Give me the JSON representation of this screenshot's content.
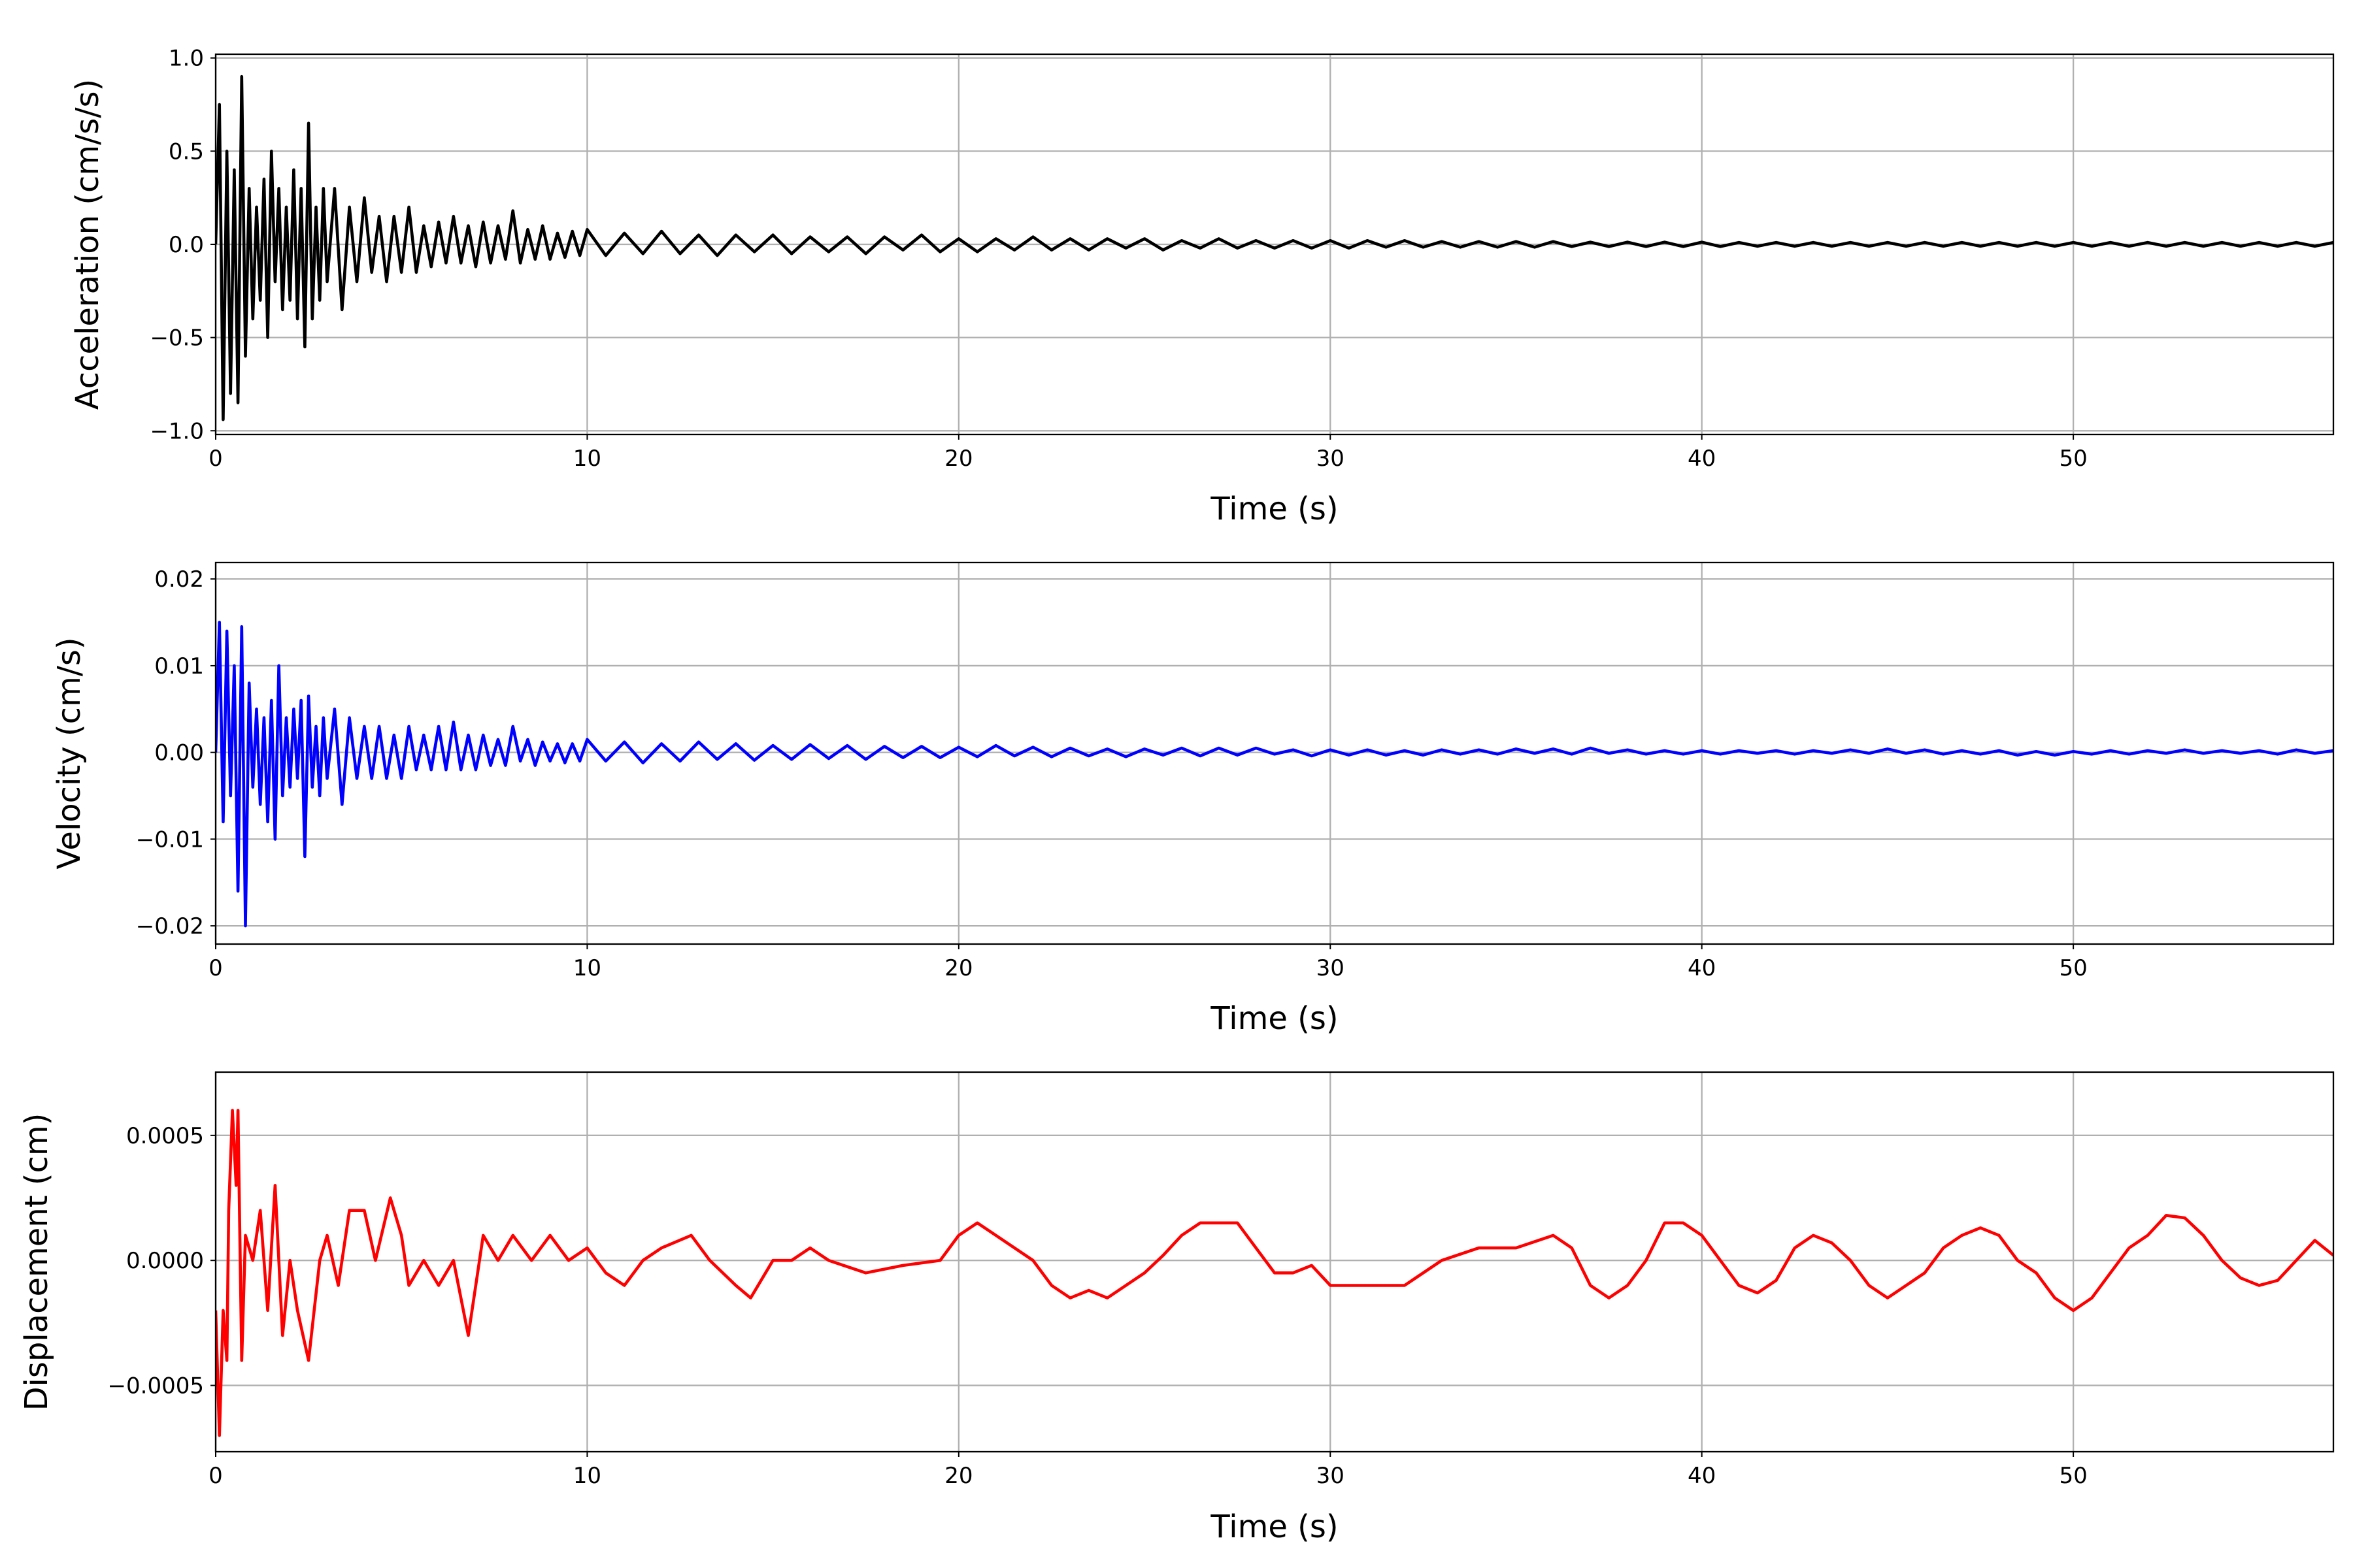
{
  "chart_data": [
    {
      "type": "line",
      "title": "",
      "xlabel": "Time (s)",
      "ylabel": "Acceleration (cm/s/s)",
      "xlim": [
        0,
        57
      ],
      "ylim": [
        -1.02,
        1.02
      ],
      "grid": true,
      "color": "#000000",
      "xticks": [
        {
          "v": 0,
          "label": "0"
        },
        {
          "v": 10,
          "label": "10"
        },
        {
          "v": 20,
          "label": "20"
        },
        {
          "v": 30,
          "label": "30"
        },
        {
          "v": 40,
          "label": "40"
        },
        {
          "v": 50,
          "label": "50"
        }
      ],
      "yticks": [
        {
          "v": 1.0,
          "label": "1.0"
        },
        {
          "v": 0.5,
          "label": "0.5"
        },
        {
          "v": 0.0,
          "label": "0.0"
        },
        {
          "v": -0.5,
          "label": "−0.5"
        },
        {
          "v": -1.0,
          "label": "−1.0"
        }
      ],
      "segments": [
        {
          "t0": 0,
          "dt": 0.1,
          "values": [
            0,
            0.75,
            -0.94,
            0.5,
            -0.8,
            0.4,
            -0.85,
            0.9,
            -0.6,
            0.3,
            -0.4,
            0.2,
            -0.3,
            0.35,
            -0.5,
            0.5,
            -0.2,
            0.3,
            -0.35,
            0.2,
            -0.3,
            0.4,
            -0.4,
            0.3,
            -0.55,
            0.65,
            -0.4,
            0.2,
            -0.3,
            0.3,
            -0.2
          ]
        },
        {
          "t0": 3.2,
          "dt": 0.2,
          "values": [
            0.3,
            -0.35,
            0.2,
            -0.2,
            0.25,
            -0.15,
            0.15,
            -0.2,
            0.15,
            -0.15,
            0.2,
            -0.15,
            0.1,
            -0.12,
            0.12,
            -0.1,
            0.15,
            -0.1,
            0.1,
            -0.12,
            0.12,
            -0.1,
            0.1,
            -0.08,
            0.18,
            -0.1,
            0.08,
            -0.08,
            0.1,
            -0.08,
            0.06,
            -0.07,
            0.07,
            -0.06,
            0.08
          ]
        },
        {
          "t0": 10.5,
          "dt": 0.5,
          "values": [
            -0.06,
            0.06,
            -0.05,
            0.07,
            -0.05,
            0.05,
            -0.06,
            0.05,
            -0.04,
            0.05,
            -0.05,
            0.04,
            -0.04,
            0.04,
            -0.05,
            0.04,
            -0.03,
            0.05,
            -0.04,
            0.03,
            -0.04,
            0.03,
            -0.03,
            0.04,
            -0.03,
            0.03,
            -0.03,
            0.03,
            -0.02,
            0.03,
            -0.03,
            0.02,
            -0.02,
            0.03,
            -0.02,
            0.02,
            -0.02,
            0.02,
            -0.02,
            0.02,
            -0.02,
            0.02,
            -0.015,
            0.02,
            -0.015,
            0.015,
            -0.015,
            0.015,
            -0.015,
            0.015,
            -0.015,
            0.015,
            -0.012,
            0.012,
            -0.012,
            0.012,
            -0.012,
            0.012,
            -0.012,
            0.012,
            -0.012,
            0.01,
            -0.01,
            0.01,
            -0.01,
            0.01,
            -0.01,
            0.01,
            -0.01,
            0.01,
            -0.01,
            0.01,
            -0.01,
            0.01,
            -0.01,
            0.01,
            -0.01,
            0.01,
            -0.01,
            0.01,
            -0.01,
            0.01,
            -0.01,
            0.01,
            -0.01,
            0.01,
            -0.01,
            0.01,
            -0.01,
            0.01,
            -0.01,
            0.01,
            -0.01,
            0.01
          ]
        }
      ]
    },
    {
      "type": "line",
      "title": "",
      "xlabel": "Time (s)",
      "ylabel": "Velocity (cm/s)",
      "xlim": [
        0,
        57
      ],
      "ylim": [
        -0.0221,
        0.0219
      ],
      "grid": true,
      "color": "#0000ff",
      "xticks": [
        {
          "v": 0,
          "label": "0"
        },
        {
          "v": 10,
          "label": "10"
        },
        {
          "v": 20,
          "label": "20"
        },
        {
          "v": 30,
          "label": "30"
        },
        {
          "v": 40,
          "label": "40"
        },
        {
          "v": 50,
          "label": "50"
        }
      ],
      "yticks": [
        {
          "v": 0.02,
          "label": "0.02"
        },
        {
          "v": 0.01,
          "label": "0.01"
        },
        {
          "v": 0.0,
          "label": "0.00"
        },
        {
          "v": -0.01,
          "label": "−0.01"
        },
        {
          "v": -0.02,
          "label": "−0.02"
        }
      ],
      "segments": [
        {
          "t0": 0,
          "dt": 0.1,
          "values": [
            0,
            0.015,
            -0.008,
            0.014,
            -0.005,
            0.01,
            -0.016,
            0.0145,
            -0.02,
            0.008,
            -0.004,
            0.005,
            -0.006,
            0.004,
            -0.008,
            0.006,
            -0.01,
            0.01,
            -0.005,
            0.004,
            -0.004,
            0.005,
            -0.003,
            0.006,
            -0.012,
            0.0065,
            -0.004,
            0.003,
            -0.005,
            0.004,
            -0.003
          ]
        },
        {
          "t0": 3.2,
          "dt": 0.2,
          "values": [
            0.005,
            -0.006,
            0.004,
            -0.003,
            0.003,
            -0.003,
            0.003,
            -0.003,
            0.002,
            -0.003,
            0.003,
            -0.002,
            0.002,
            -0.002,
            0.003,
            -0.002,
            0.0035,
            -0.002,
            0.002,
            -0.002,
            0.002,
            -0.0015,
            0.0015,
            -0.0015,
            0.003,
            -0.001,
            0.0015,
            -0.0015,
            0.0012,
            -0.001,
            0.001,
            -0.0012,
            0.001,
            -0.001,
            0.0015
          ]
        },
        {
          "t0": 10.5,
          "dt": 0.5,
          "values": [
            -0.001,
            0.0012,
            -0.0012,
            0.001,
            -0.001,
            0.0012,
            -0.0008,
            0.001,
            -0.0009,
            0.0008,
            -0.0008,
            0.0009,
            -0.0007,
            0.0008,
            -0.0008,
            0.0007,
            -0.0006,
            0.0007,
            -0.0006,
            0.0006,
            -0.0005,
            0.0008,
            -0.0004,
            0.0006,
            -0.0005,
            0.0005,
            -0.0004,
            0.0004,
            -0.0005,
            0.0004,
            -0.0003,
            0.0005,
            -0.0004,
            0.0005,
            -0.0003,
            0.0005,
            -0.0002,
            0.0003,
            -0.0004,
            0.0003,
            -0.0003,
            0.0003,
            -0.0003,
            0.0002,
            -0.0003,
            0.0003,
            -0.0002,
            0.0003,
            -0.0002,
            0.0004,
            -0.0001,
            0.0004,
            -0.0002,
            0.0005,
            -0.0001,
            0.0003,
            -0.0002,
            0.0002,
            -0.0002,
            0.0002,
            -0.0002,
            0.0002,
            -0.0001,
            0.0002,
            -0.0002,
            0.0002,
            -0.0001,
            0.0003,
            -0.0001,
            0.0004,
            -0.0001,
            0.0003,
            -0.0002,
            0.0002,
            -0.0002,
            0.0002,
            -0.0003,
            0.0001,
            -0.0003,
            0.0001,
            -0.0002,
            0.0002,
            -0.0002,
            0.0002,
            -0.0001,
            0.0003,
            -0.0001,
            0.0002,
            -0.0001,
            0.0002,
            -0.0002,
            0.0003,
            -0.0001,
            0.0002
          ]
        }
      ]
    },
    {
      "type": "line",
      "title": "",
      "xlabel": "Time (s)",
      "ylabel": "Displacement (cm)",
      "xlim": [
        0,
        57
      ],
      "ylim": [
        -0.000765,
        0.000753
      ],
      "grid": true,
      "color": "#ff0000",
      "xticks": [
        {
          "v": 0,
          "label": "0"
        },
        {
          "v": 10,
          "label": "10"
        },
        {
          "v": 20,
          "label": "20"
        },
        {
          "v": 30,
          "label": "30"
        },
        {
          "v": 40,
          "label": "40"
        },
        {
          "v": 50,
          "label": "50"
        }
      ],
      "yticks": [
        {
          "v": 0.0005,
          "label": "0.0005"
        },
        {
          "v": 0.0,
          "label": "0.0000"
        },
        {
          "v": -0.0005,
          "label": "−0.0005"
        }
      ],
      "x": [
        0,
        0.1,
        0.2,
        0.3,
        0.35,
        0.45,
        0.55,
        0.6,
        0.7,
        0.8,
        1.0,
        1.2,
        1.4,
        1.6,
        1.8,
        2.0,
        2.2,
        2.5,
        2.8,
        3.0,
        3.3,
        3.6,
        4.0,
        4.3,
        4.7,
        5.0,
        5.2,
        5.6,
        6.0,
        6.4,
        6.8,
        7.2,
        7.6,
        8.0,
        8.5,
        9.0,
        9.5,
        10,
        10.5,
        11,
        11.5,
        12,
        12.8,
        13.3,
        14,
        14.4,
        15,
        15.5,
        16,
        16.5,
        17.5,
        18.5,
        19.5,
        20,
        20.5,
        21,
        22,
        22.5,
        23,
        23.5,
        24,
        24.5,
        25,
        25.5,
        26,
        26.5,
        27,
        27.5,
        28,
        28.5,
        29,
        29.5,
        30,
        31,
        32,
        33,
        34,
        35,
        36,
        36.5,
        37,
        37.5,
        38,
        38.5,
        39,
        39.5,
        40,
        40.5,
        41,
        41.5,
        42,
        42.5,
        43,
        43.5,
        44,
        44.5,
        45,
        45.5,
        46,
        46.5,
        47,
        47.5,
        48,
        48.5,
        49,
        49.5,
        50,
        50.5,
        51,
        51.5,
        52,
        52.5,
        53,
        53.5,
        54,
        54.5,
        55,
        55.5,
        56,
        56.5,
        57
      ],
      "y": [
        -0.0002,
        -0.0007,
        -0.0002,
        -0.0004,
        0.0002,
        0.0006,
        0.0003,
        0.0006,
        -0.0004,
        0.0001,
        0.0,
        0.0002,
        -0.0002,
        0.0003,
        -0.0003,
        0.0,
        -0.0002,
        -0.0004,
        0.0,
        0.0001,
        -0.0001,
        0.0002,
        0.0002,
        0.0,
        0.00025,
        0.0001,
        -0.0001,
        0.0,
        -0.0001,
        0.0,
        -0.0003,
        0.0001,
        0.0,
        0.0001,
        0.0,
        0.0001,
        0.0,
        5e-05,
        -5e-05,
        -0.0001,
        0.0,
        5e-05,
        0.0001,
        0.0,
        -0.0001,
        -0.00015,
        0.0,
        0.0,
        5e-05,
        0.0,
        -5e-05,
        -2e-05,
        0.0,
        0.0001,
        0.00015,
        0.0001,
        0.0,
        -0.0001,
        -0.00015,
        -0.00012,
        -0.00015,
        -0.0001,
        -5e-05,
        2e-05,
        0.0001,
        0.00015,
        0.00015,
        0.00015,
        5e-05,
        -5e-05,
        -5e-05,
        -2e-05,
        -0.0001,
        -0.0001,
        -0.0001,
        0.0,
        5e-05,
        5e-05,
        0.0001,
        5e-05,
        -0.0001,
        -0.00015,
        -0.0001,
        0.0,
        0.00015,
        0.00015,
        0.0001,
        0.0,
        -0.0001,
        -0.00013,
        -8e-05,
        5e-05,
        0.0001,
        7e-05,
        0.0,
        -0.0001,
        -0.00015,
        -0.0001,
        -5e-05,
        5e-05,
        0.0001,
        0.00013,
        0.0001,
        0.0,
        -5e-05,
        -0.00015,
        -0.0002,
        -0.00015,
        -5e-05,
        5e-05,
        0.0001,
        0.00018,
        0.00017,
        0.0001,
        0.0,
        -7e-05,
        -0.0001,
        -8e-05,
        0.0,
        8e-05,
        2e-05
      ]
    }
  ]
}
